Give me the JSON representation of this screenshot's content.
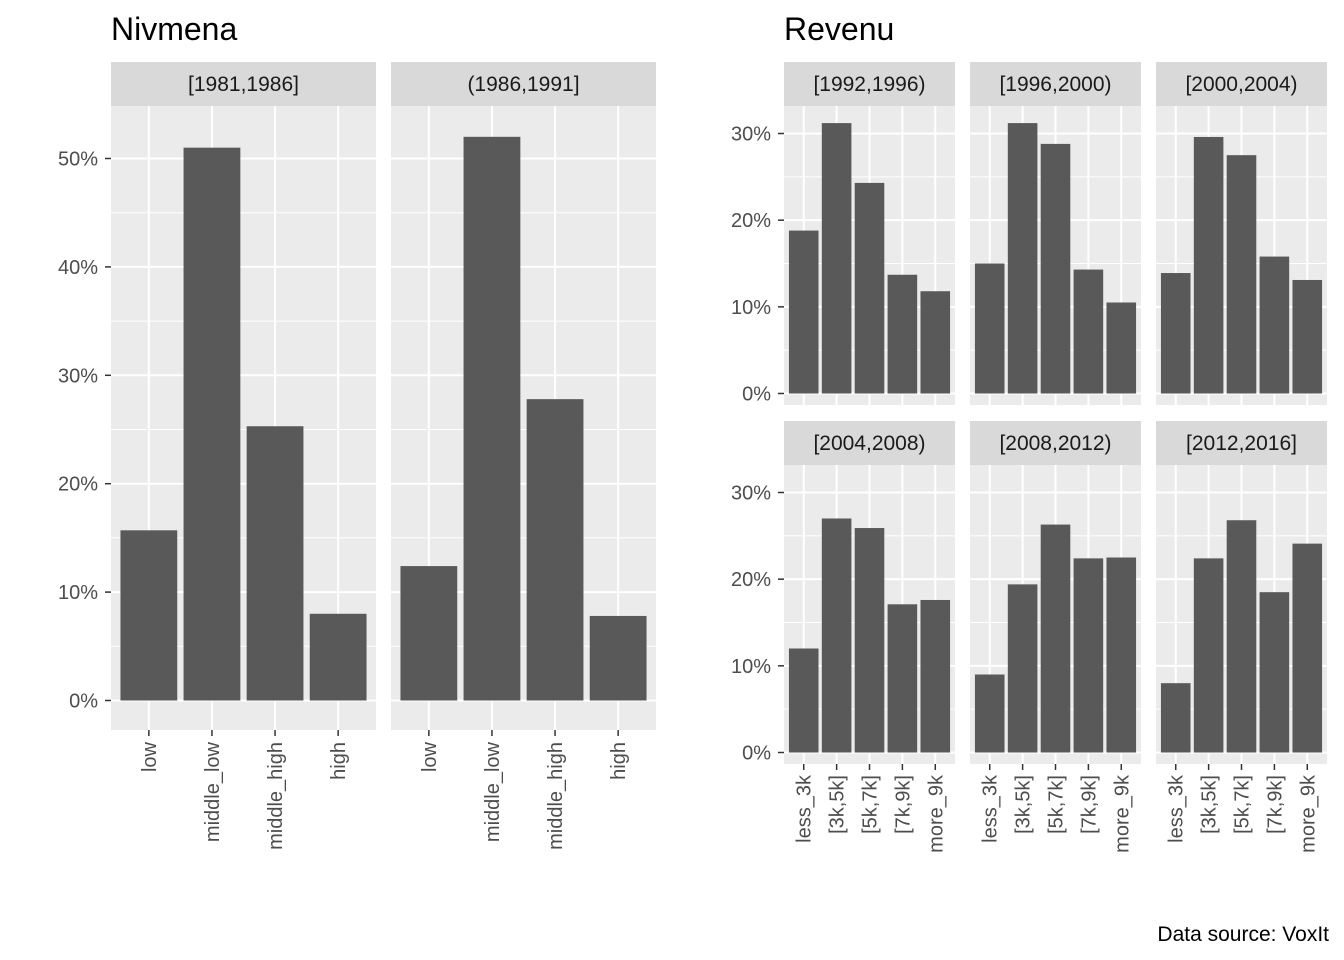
{
  "chart_data": [
    {
      "type": "bar",
      "title": "Nivmena",
      "categories": [
        "low",
        "middle_low",
        "middle_high",
        "high"
      ],
      "y_tick_labels": [
        "0%",
        "10%",
        "20%",
        "30%",
        "40%",
        "50%"
      ],
      "ylim": [
        0,
        55
      ],
      "grid": true,
      "panels": [
        {
          "label": "[1981,1986]",
          "values": [
            15.7,
            51.0,
            25.3,
            8.0
          ]
        },
        {
          "label": "(1986,1991]",
          "values": [
            12.4,
            52.0,
            27.8,
            7.8
          ]
        }
      ]
    },
    {
      "type": "bar",
      "title": "Revenu",
      "categories": [
        "less_3k",
        "[3k,5k]",
        "[5k,7k]",
        "[7k,9k]",
        "more_9k"
      ],
      "y_tick_labels": [
        "0%",
        "10%",
        "20%",
        "30%"
      ],
      "ylim": [
        0,
        33
      ],
      "grid": true,
      "panels": [
        {
          "label": "[1992,1996)",
          "values": [
            18.8,
            31.2,
            24.3,
            13.7,
            11.8
          ]
        },
        {
          "label": "[1996,2000)",
          "values": [
            15.0,
            31.2,
            28.8,
            14.3,
            10.5
          ]
        },
        {
          "label": "[2000,2004)",
          "values": [
            13.9,
            29.6,
            27.5,
            15.8,
            13.1
          ]
        },
        {
          "label": "[2004,2008)",
          "values": [
            12.0,
            27.0,
            25.9,
            17.1,
            17.6
          ]
        },
        {
          "label": "[2008,2012)",
          "values": [
            9.0,
            19.4,
            26.3,
            22.4,
            22.5
          ]
        },
        {
          "label": "[2012,2016]",
          "values": [
            8.0,
            22.4,
            26.8,
            18.5,
            24.1
          ]
        }
      ]
    }
  ],
  "caption": "Data source: VoxIt",
  "colors": {
    "bar": "#595959",
    "panel_bg": "#ebebeb",
    "strip_bg": "#d9d9d9",
    "grid": "#ffffff",
    "axis_text": "#4d4d4d"
  }
}
